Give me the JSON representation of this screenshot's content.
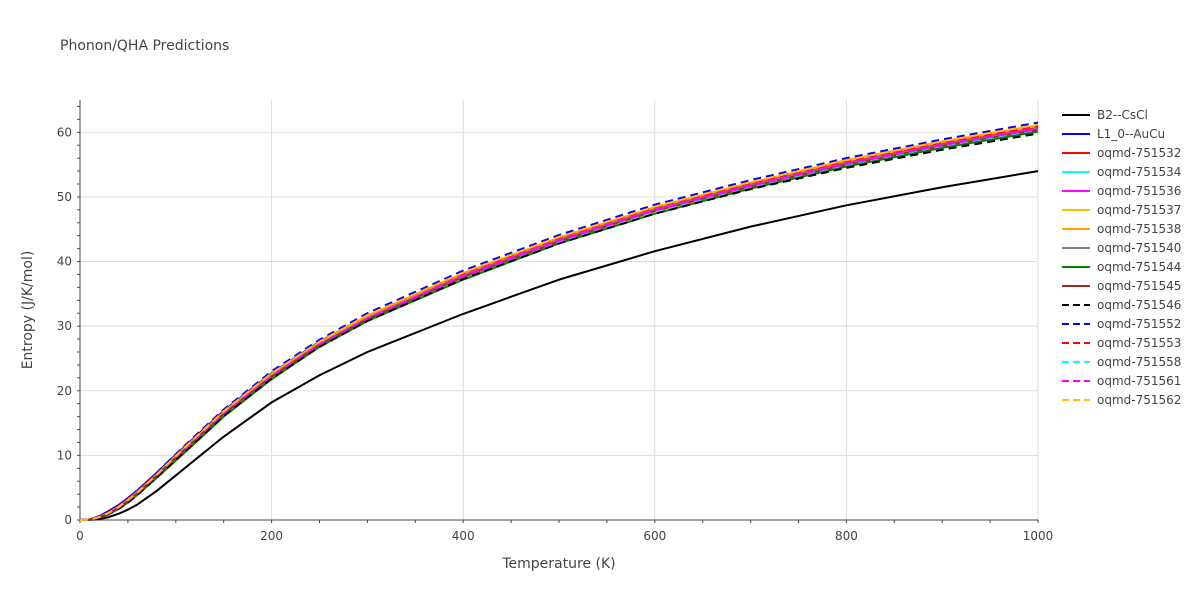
{
  "chart_data": {
    "type": "line",
    "title": "Phonon/QHA Predictions",
    "xlabel": "Temperature (K)",
    "ylabel": "Entropy (J/K/mol)",
    "xlim": [
      0,
      1000
    ],
    "ylim": [
      0,
      65
    ],
    "xticks": [
      0,
      200,
      400,
      600,
      800,
      1000
    ],
    "yticks": [
      0,
      10,
      20,
      30,
      40,
      50,
      60
    ],
    "grid": true,
    "legend_position": "right",
    "x": [
      0,
      10,
      20,
      30,
      40,
      50,
      60,
      80,
      100,
      120,
      150,
      200,
      250,
      300,
      400,
      500,
      600,
      700,
      800,
      900,
      1000
    ],
    "series": [
      {
        "name": "B2--CsCl",
        "color": "#000000",
        "dash": "solid",
        "values": [
          0,
          0.02,
          0.15,
          0.45,
          0.95,
          1.6,
          2.4,
          4.5,
          6.9,
          9.3,
          12.9,
          18.2,
          22.4,
          26.0,
          31.9,
          37.2,
          41.6,
          45.4,
          48.7,
          51.5,
          54.0
        ]
      },
      {
        "name": "L1_0--AuCu",
        "color": "#0000ff",
        "dash": "solid",
        "values": [
          0,
          0.08,
          0.6,
          1.4,
          2.3,
          3.4,
          4.6,
          7.3,
          10.1,
          12.8,
          16.9,
          22.7,
          27.6,
          31.6,
          38.1,
          43.6,
          48.3,
          52.0,
          55.5,
          58.3,
          60.8
        ]
      },
      {
        "name": "oqmd-751532",
        "color": "#ff0000",
        "dash": "solid",
        "values": [
          0,
          0.06,
          0.5,
          1.2,
          2.1,
          3.2,
          4.4,
          7.1,
          9.9,
          12.6,
          16.7,
          22.5,
          27.4,
          31.4,
          37.9,
          43.4,
          48.1,
          51.9,
          55.3,
          58.2,
          60.7
        ]
      },
      {
        "name": "oqmd-751534",
        "color": "#00ffff",
        "dash": "solid",
        "values": [
          0,
          0.05,
          0.45,
          1.1,
          2.0,
          3.1,
          4.3,
          7.0,
          9.8,
          12.5,
          16.6,
          22.4,
          27.3,
          31.3,
          37.8,
          43.3,
          48.0,
          51.8,
          55.2,
          58.1,
          60.6
        ]
      },
      {
        "name": "oqmd-751536",
        "color": "#ff00ff",
        "dash": "solid",
        "values": [
          0,
          0.05,
          0.45,
          1.1,
          2.0,
          3.1,
          4.3,
          7.0,
          9.8,
          12.5,
          16.6,
          22.4,
          27.3,
          31.3,
          37.8,
          43.3,
          48.0,
          51.8,
          55.2,
          58.1,
          60.6
        ]
      },
      {
        "name": "oqmd-751537",
        "color": "#ffc000",
        "dash": "solid",
        "values": [
          0,
          0.05,
          0.45,
          1.1,
          2.0,
          3.1,
          4.3,
          7.0,
          9.9,
          12.6,
          16.7,
          22.6,
          27.5,
          31.6,
          38.2,
          43.7,
          48.4,
          52.2,
          55.6,
          58.5,
          61.0
        ]
      },
      {
        "name": "oqmd-751538",
        "color": "#ffa500",
        "dash": "solid",
        "values": [
          0,
          0.05,
          0.45,
          1.1,
          2.0,
          3.1,
          4.3,
          7.0,
          9.9,
          12.6,
          16.7,
          22.6,
          27.5,
          31.6,
          38.2,
          43.7,
          48.4,
          52.2,
          55.7,
          58.6,
          61.1
        ]
      },
      {
        "name": "oqmd-751540",
        "color": "#808080",
        "dash": "solid",
        "values": [
          0,
          0.05,
          0.42,
          1.05,
          1.9,
          3.0,
          4.2,
          6.9,
          9.7,
          12.4,
          16.5,
          22.3,
          27.2,
          31.2,
          37.7,
          43.2,
          47.9,
          51.7,
          55.1,
          58.0,
          60.5
        ]
      },
      {
        "name": "oqmd-751544",
        "color": "#008000",
        "dash": "solid",
        "values": [
          0,
          0.04,
          0.35,
          0.9,
          1.7,
          2.7,
          3.9,
          6.5,
          9.2,
          11.9,
          16.0,
          21.8,
          26.8,
          30.8,
          37.2,
          42.8,
          47.4,
          51.3,
          54.7,
          57.6,
          60.1
        ]
      },
      {
        "name": "oqmd-751545",
        "color": "#a52a2a",
        "dash": "solid",
        "values": [
          0,
          0.05,
          0.4,
          1.0,
          1.85,
          2.9,
          4.1,
          6.8,
          9.6,
          12.3,
          16.4,
          22.2,
          27.1,
          31.1,
          37.6,
          43.1,
          47.8,
          51.6,
          55.0,
          57.9,
          60.4
        ]
      },
      {
        "name": "oqmd-751546",
        "color": "#000000",
        "dash": "dash",
        "values": [
          0,
          0.04,
          0.35,
          0.9,
          1.7,
          2.7,
          3.9,
          6.6,
          9.3,
          12.0,
          16.1,
          21.9,
          26.8,
          30.8,
          37.3,
          42.8,
          47.4,
          51.2,
          54.5,
          57.3,
          59.8
        ]
      },
      {
        "name": "oqmd-751552",
        "color": "#0000ff",
        "dash": "dash",
        "values": [
          0,
          0.08,
          0.55,
          1.3,
          2.2,
          3.3,
          4.5,
          7.3,
          10.2,
          13.0,
          17.1,
          23.0,
          27.9,
          32.0,
          38.6,
          44.1,
          48.8,
          52.6,
          56.0,
          58.9,
          61.5
        ]
      },
      {
        "name": "oqmd-751553",
        "color": "#ff0000",
        "dash": "dash",
        "values": [
          0,
          0.06,
          0.5,
          1.2,
          2.1,
          3.2,
          4.4,
          7.1,
          10.0,
          12.8,
          16.9,
          22.7,
          27.6,
          31.7,
          38.2,
          43.7,
          48.4,
          52.2,
          55.6,
          58.5,
          61.0
        ]
      },
      {
        "name": "oqmd-751558",
        "color": "#00ffff",
        "dash": "dash",
        "values": [
          0,
          0.05,
          0.42,
          1.05,
          1.9,
          3.0,
          4.2,
          6.9,
          9.7,
          12.4,
          16.5,
          22.3,
          27.2,
          31.2,
          37.7,
          43.1,
          47.8,
          51.6,
          55.0,
          57.9,
          60.4
        ]
      },
      {
        "name": "oqmd-751561",
        "color": "#ff00ff",
        "dash": "dash",
        "values": [
          0,
          0.05,
          0.42,
          1.05,
          1.9,
          3.0,
          4.2,
          6.9,
          9.7,
          12.4,
          16.5,
          22.3,
          27.2,
          31.2,
          37.7,
          43.2,
          47.9,
          51.7,
          55.1,
          58.0,
          60.5
        ]
      },
      {
        "name": "oqmd-751562",
        "color": "#ffc000",
        "dash": "dash",
        "values": [
          0,
          0.05,
          0.45,
          1.1,
          2.0,
          3.1,
          4.3,
          7.0,
          9.9,
          12.7,
          16.8,
          22.7,
          27.6,
          31.7,
          38.3,
          43.8,
          48.5,
          52.3,
          55.7,
          58.6,
          61.2
        ]
      }
    ]
  }
}
